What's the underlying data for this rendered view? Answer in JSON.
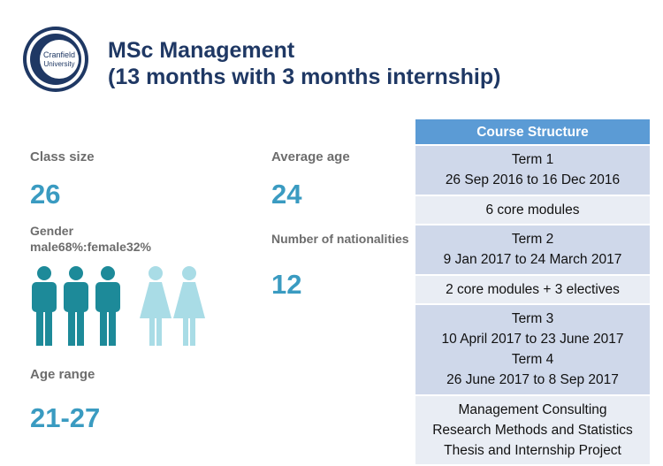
{
  "header": {
    "logo_line1": "Cranfield",
    "logo_line2": "University",
    "title_line1": "MSc Management",
    "title_line2": "(13 months with 3 months internship)"
  },
  "stats": {
    "class_size_label": "Class size",
    "class_size_value": "26",
    "gender_label": "Gender",
    "gender_ratio": "male68%:female32%",
    "age_range_label": "Age range",
    "age_range_value": "21-27",
    "average_age_label": "Average age",
    "average_age_value": "24",
    "nationalities_label": "Number of nationalities",
    "nationalities_value": "12",
    "male_figures": 3,
    "female_figures": 2
  },
  "course_structure": {
    "heading": "Course Structure",
    "rows": [
      {
        "lines": [
          "Term 1",
          "26 Sep 2016 to 16 Dec 2016"
        ]
      },
      {
        "lines": [
          "6 core modules"
        ]
      },
      {
        "lines": [
          "Term 2",
          "9 Jan 2017 to 24 March 2017"
        ]
      },
      {
        "lines": [
          "2 core modules + 3 electives"
        ]
      },
      {
        "lines": [
          "Term 3",
          "10 April 2017 to 23 June 2017",
          "Term 4",
          "26 June 2017 to 8 Sep 2017"
        ]
      },
      {
        "lines": [
          "Management Consulting",
          "Research Methods and Statistics",
          "Thesis and Internship Project"
        ]
      }
    ]
  },
  "colors": {
    "title": "#1f3864",
    "value": "#3a9bc1",
    "male": "#1d8a99",
    "female": "#a9dce6",
    "table_header": "#5b9bd5",
    "table_dark": "#cfd8ea",
    "table_light": "#e9edf4"
  }
}
